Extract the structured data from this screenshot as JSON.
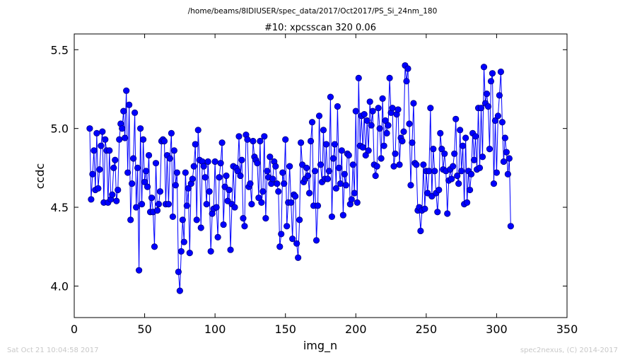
{
  "chart_data": {
    "type": "scatter",
    "suptitle": "/home/beams/8IDIUSER/spec_data/2017/Oct2017/PS_Si_24nm_180",
    "title": "#10: xpcsscan 320 0.06",
    "xlabel": "img_n",
    "ylabel": "ccdc",
    "xlim": [
      0,
      350
    ],
    "ylim": [
      3.8,
      5.6
    ],
    "xticks": [
      "0",
      "50",
      "100",
      "150",
      "200",
      "250",
      "300",
      "350"
    ],
    "yticks": [
      "4.0",
      "4.5",
      "5.0",
      "5.5"
    ],
    "xtick_values": [
      0,
      50,
      100,
      150,
      200,
      250,
      300,
      350
    ],
    "ytick_values": [
      4.0,
      4.5,
      5.0,
      5.5
    ],
    "grid": false,
    "line_color": "#0000ff",
    "marker_color": "#0000ff",
    "marker_edge_color": "#000080",
    "x_start": 11,
    "y": [
      5.0,
      4.55,
      4.71,
      4.86,
      4.61,
      4.97,
      4.62,
      4.74,
      4.89,
      4.98,
      4.53,
      4.93,
      4.86,
      4.53,
      4.86,
      4.55,
      4.58,
      4.75,
      4.8,
      4.54,
      4.61,
      4.93,
      5.03,
      5.0,
      5.11,
      4.94,
      5.24,
      4.72,
      5.15,
      4.42,
      4.65,
      4.81,
      5.1,
      4.5,
      4.75,
      4.1,
      5.0,
      4.52,
      4.93,
      4.66,
      4.73,
      4.63,
      4.83,
      4.47,
      4.56,
      4.47,
      4.25,
      4.78,
      4.48,
      4.52,
      4.6,
      4.92,
      4.93,
      4.92,
      4.52,
      4.83,
      4.52,
      4.81,
      4.97,
      4.44,
      4.86,
      4.64,
      4.72,
      4.09,
      3.97,
      4.22,
      4.42,
      4.28,
      4.72,
      4.51,
      4.62,
      4.21,
      4.65,
      4.68,
      4.76,
      4.9,
      4.42,
      4.99,
      4.8,
      4.37,
      4.79,
      4.76,
      4.69,
      4.52,
      4.79,
      4.6,
      4.22,
      4.46,
      4.49,
      4.79,
      4.5,
      4.31,
      4.69,
      4.78,
      4.91,
      4.39,
      4.63,
      4.7,
      4.54,
      4.61,
      4.23,
      4.52,
      4.76,
      4.5,
      4.75,
      4.73,
      4.95,
      4.7,
      4.8,
      4.43,
      4.38,
      4.96,
      4.93,
      4.63,
      4.65,
      4.52,
      4.92,
      4.82,
      4.8,
      4.78,
      4.56,
      4.92,
      4.53,
      4.6,
      4.95,
      4.43,
      4.73,
      4.69,
      4.82,
      4.65,
      4.68,
      4.79,
      4.76,
      4.65,
      4.6,
      4.25,
      4.33,
      4.72,
      4.65,
      4.93,
      4.38,
      4.53,
      4.76,
      4.53,
      4.3,
      4.58,
      4.57,
      4.27,
      4.18,
      4.42,
      4.91,
      4.77,
      4.66,
      4.68,
      4.75,
      4.7,
      4.59,
      4.92,
      5.04,
      4.51,
      4.73,
      4.29,
      4.51,
      5.08,
      4.77,
      4.66,
      4.99,
      4.68,
      4.9,
      4.68,
      4.73,
      5.2,
      4.44,
      4.81,
      4.9,
      4.62,
      5.14,
      4.75,
      4.65,
      4.86,
      4.45,
      4.71,
      4.64,
      4.84,
      4.83,
      4.52,
      4.55,
      4.77,
      4.59,
      5.11,
      4.53,
      5.32,
      4.89,
      5.08,
      4.88,
      5.09,
      4.83,
      5.05,
      4.86,
      5.17,
      5.02,
      5.11,
      4.77,
      4.7,
      4.76,
      5.13,
      5.0,
      4.81,
      5.19,
      4.89,
      5.05,
      4.97,
      5.02,
      5.32,
      5.1,
      5.13,
      4.76,
      4.84,
      5.09,
      5.12,
      4.77,
      4.94,
      4.92,
      4.98,
      5.4,
      5.3,
      5.38,
      5.03,
      4.64,
      4.91,
      5.16,
      4.78,
      4.77,
      4.48,
      4.5,
      4.35,
      4.48,
      4.77,
      4.49,
      4.73,
      4.59,
      4.73,
      5.13,
      4.57,
      4.87,
      4.73,
      4.59,
      4.47,
      4.61,
      4.97,
      4.87,
      4.74,
      4.84,
      4.73,
      4.46,
      4.67,
      4.74,
      4.68,
      4.76,
      4.84,
      5.06,
      4.7,
      4.65,
      4.99,
      4.73,
      4.89,
      4.52,
      4.94,
      4.53,
      4.73,
      4.61,
      4.71,
      4.97,
      4.8,
      4.95,
      4.74,
      5.13,
      4.75,
      5.13,
      4.82,
      5.39,
      5.16,
      5.22,
      5.14,
      4.87,
      5.3,
      5.35,
      4.65,
      5.05,
      4.72,
      5.08,
      5.21,
      5.36,
      5.04,
      4.79,
      4.94,
      4.85,
      4.71,
      4.81,
      4.38
    ]
  },
  "footer": {
    "left": "Sat Oct 21 10:04:58 2017",
    "right": "spec2nexus, (C) 2014-2017"
  }
}
